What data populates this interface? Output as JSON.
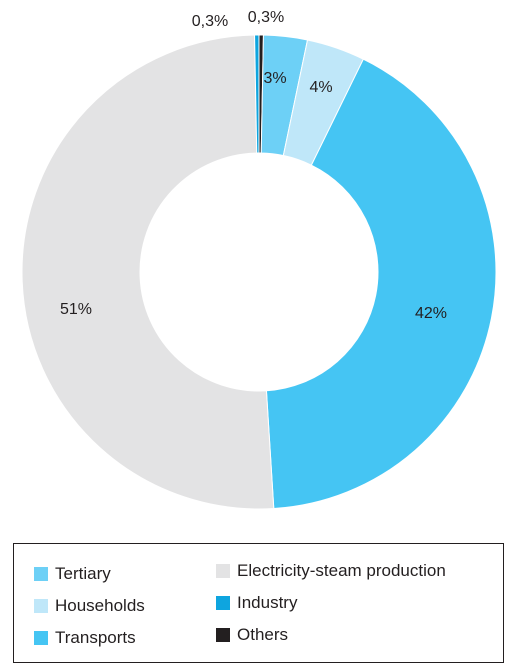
{
  "chart_data": {
    "type": "pie",
    "donut": true,
    "slices": [
      {
        "label": "Others",
        "value": 0.3,
        "display": "0,3%",
        "color": "#231f20"
      },
      {
        "label": "Tertiary",
        "value": 3,
        "display": "3%",
        "color": "#6dd0f6"
      },
      {
        "label": "Households",
        "value": 4,
        "display": "4%",
        "color": "#bfe7f9"
      },
      {
        "label": "Transports",
        "value": 42,
        "display": "42%",
        "color": "#45c5f3"
      },
      {
        "label": "Electricity-steam production",
        "value": 51,
        "display": "51%",
        "color": "#e3e3e4"
      },
      {
        "label": "Industry",
        "value": 0.3,
        "display": "0,3%",
        "color": "#0ea5df"
      }
    ],
    "legend": [
      {
        "label": "Tertiary",
        "color": "#6dd0f6"
      },
      {
        "label": "Households",
        "color": "#bfe7f9"
      },
      {
        "label": "Transports",
        "color": "#45c5f3"
      },
      {
        "label": "Electricity-steam production",
        "color": "#e3e3e4"
      },
      {
        "label": "Industry",
        "color": "#0ea5df"
      },
      {
        "label": "Others",
        "color": "#231f20"
      }
    ],
    "legend_position": "bottom"
  }
}
